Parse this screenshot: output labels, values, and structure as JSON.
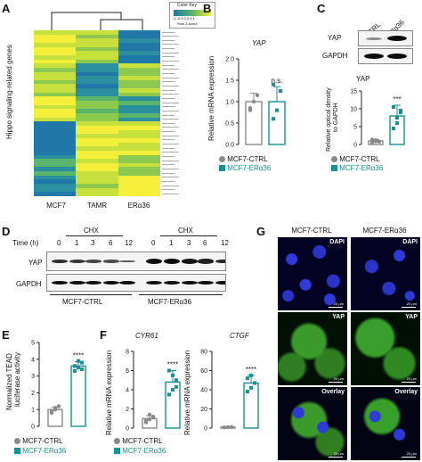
{
  "panels": {
    "A": {
      "letter": "A",
      "ylabel": "Hippo signaling-related genes",
      "columns": [
        "MCF7",
        "TAMR",
        "ERα36"
      ],
      "colorkey_title": "Color Key",
      "colorkey_ticks": "-1 -0.5 0 0.5 1",
      "colorkey_sub": "Row Z-score"
    },
    "B": {
      "letter": "B",
      "title": "YAP",
      "ylabel": "Relative mRNA expression",
      "sig": "n.s.",
      "legend": [
        "MCF7-CTRL",
        "MCF7-ERα36"
      ]
    },
    "C": {
      "letter": "C",
      "lanes": [
        "CTRL",
        "ERα36"
      ],
      "blots": [
        "YAP",
        "GAPDH"
      ],
      "title": "YAP",
      "ylabel_line1": "Relative optical density",
      "ylabel_line2": "to GAPDH",
      "sig": "***",
      "legend": [
        "MCF7-CTRL",
        "MCF7-ERα36"
      ]
    },
    "D": {
      "letter": "D",
      "treatment": "CHX",
      "time_label": "Time (h)",
      "times": [
        "0",
        "1",
        "3",
        "6",
        "12",
        "0",
        "1",
        "3",
        "6",
        "12"
      ],
      "blots": [
        "YAP",
        "GAPDH"
      ],
      "groups": [
        "MCF7-CTRL",
        "MCF7-ERα36"
      ]
    },
    "E": {
      "letter": "E",
      "ylabel_line1": "Normalized TEAD",
      "ylabel_line2": "luciferase activity",
      "sig": "****",
      "legend": [
        "MCF7-CTRL",
        "MCF7-ERα36"
      ]
    },
    "F": {
      "letter": "F",
      "gene1": "CYR61",
      "gene2": "CTGF",
      "ylabel": "Relative mRNA expression",
      "sig1": "****",
      "sig2": "****",
      "legend": [
        "MCF7-CTRL",
        "MCF7-ERα36"
      ]
    },
    "G": {
      "letter": "G",
      "columns": [
        "MCF7-CTRL",
        "MCF7-ERα36"
      ],
      "rows": [
        "DAPI",
        "YAP",
        "Overlay"
      ],
      "scale_text": "20 μm"
    }
  },
  "colors": {
    "ctrl": "#8a8a8a",
    "era36": "#1b8f92",
    "heat_low": "#1f78a8",
    "heat_high": "#f4ef3a",
    "heat_mid": "#5ab46a"
  },
  "chart_data": [
    {
      "panel": "B",
      "type": "bar",
      "categories": [
        "MCF7-CTRL",
        "MCF7-ERα36"
      ],
      "values": [
        1.0,
        1.0
      ],
      "errors": [
        0.2,
        0.35
      ],
      "ylabel": "Relative mRNA expression",
      "ylim": [
        0.0,
        2.0
      ],
      "yticks": [
        "0.0",
        "0.5",
        "1.0",
        "1.5",
        "2.0"
      ],
      "points": [
        [
          0.85,
          1.0,
          1.15,
          0.8
        ],
        [
          0.6,
          0.8,
          1.25,
          1.4
        ]
      ]
    },
    {
      "panel": "C",
      "type": "bar",
      "categories": [
        "MCF7-CTRL",
        "MCF7-ERα36"
      ],
      "values": [
        1.0,
        8.0
      ],
      "errors": [
        0.4,
        3.0
      ],
      "ylim": [
        0,
        15
      ],
      "yticks": [
        "0",
        "5",
        "10",
        "15"
      ],
      "points": [
        [
          0.5,
          1.2,
          0.8,
          1.4,
          0.9
        ],
        [
          4.5,
          7.5,
          9.5,
          10.5,
          6.0,
          9.0
        ]
      ]
    },
    {
      "panel": "E",
      "type": "bar",
      "categories": [
        "MCF7-CTRL",
        "MCF7-ERα36"
      ],
      "values": [
        1.0,
        3.6
      ],
      "errors": [
        0.15,
        0.25
      ],
      "ylim": [
        0,
        5
      ],
      "yticks": [
        "0",
        "1",
        "2",
        "3",
        "4",
        "5"
      ],
      "points": [
        [
          0.8,
          1.0,
          1.2,
          0.9,
          1.1
        ],
        [
          3.3,
          3.5,
          3.8,
          3.6,
          3.9,
          3.4
        ]
      ]
    },
    {
      "panel": "F1",
      "type": "bar",
      "categories": [
        "MCF7-CTRL",
        "MCF7-ERα36"
      ],
      "values": [
        1.0,
        4.8
      ],
      "errors": [
        0.3,
        1.2
      ],
      "ylim": [
        0,
        8
      ],
      "yticks": [
        "0",
        "2",
        "4",
        "6",
        "8"
      ],
      "points": [
        [
          0.6,
          0.9,
          1.2,
          0.8,
          1.4,
          1.1
        ],
        [
          3.5,
          4.0,
          5.0,
          6.0,
          5.5,
          4.3
        ]
      ]
    },
    {
      "panel": "F2",
      "type": "bar",
      "categories": [
        "MCF7-CTRL",
        "MCF7-ERα36"
      ],
      "values": [
        1.0,
        47
      ],
      "errors": [
        0.5,
        8
      ],
      "ylim": [
        0,
        80
      ],
      "yticks": [
        "0",
        "20",
        "40",
        "60",
        "80"
      ],
      "points": [
        [
          0.8,
          1.0,
          1.2
        ],
        [
          38,
          42,
          47,
          52,
          55
        ]
      ]
    }
  ]
}
